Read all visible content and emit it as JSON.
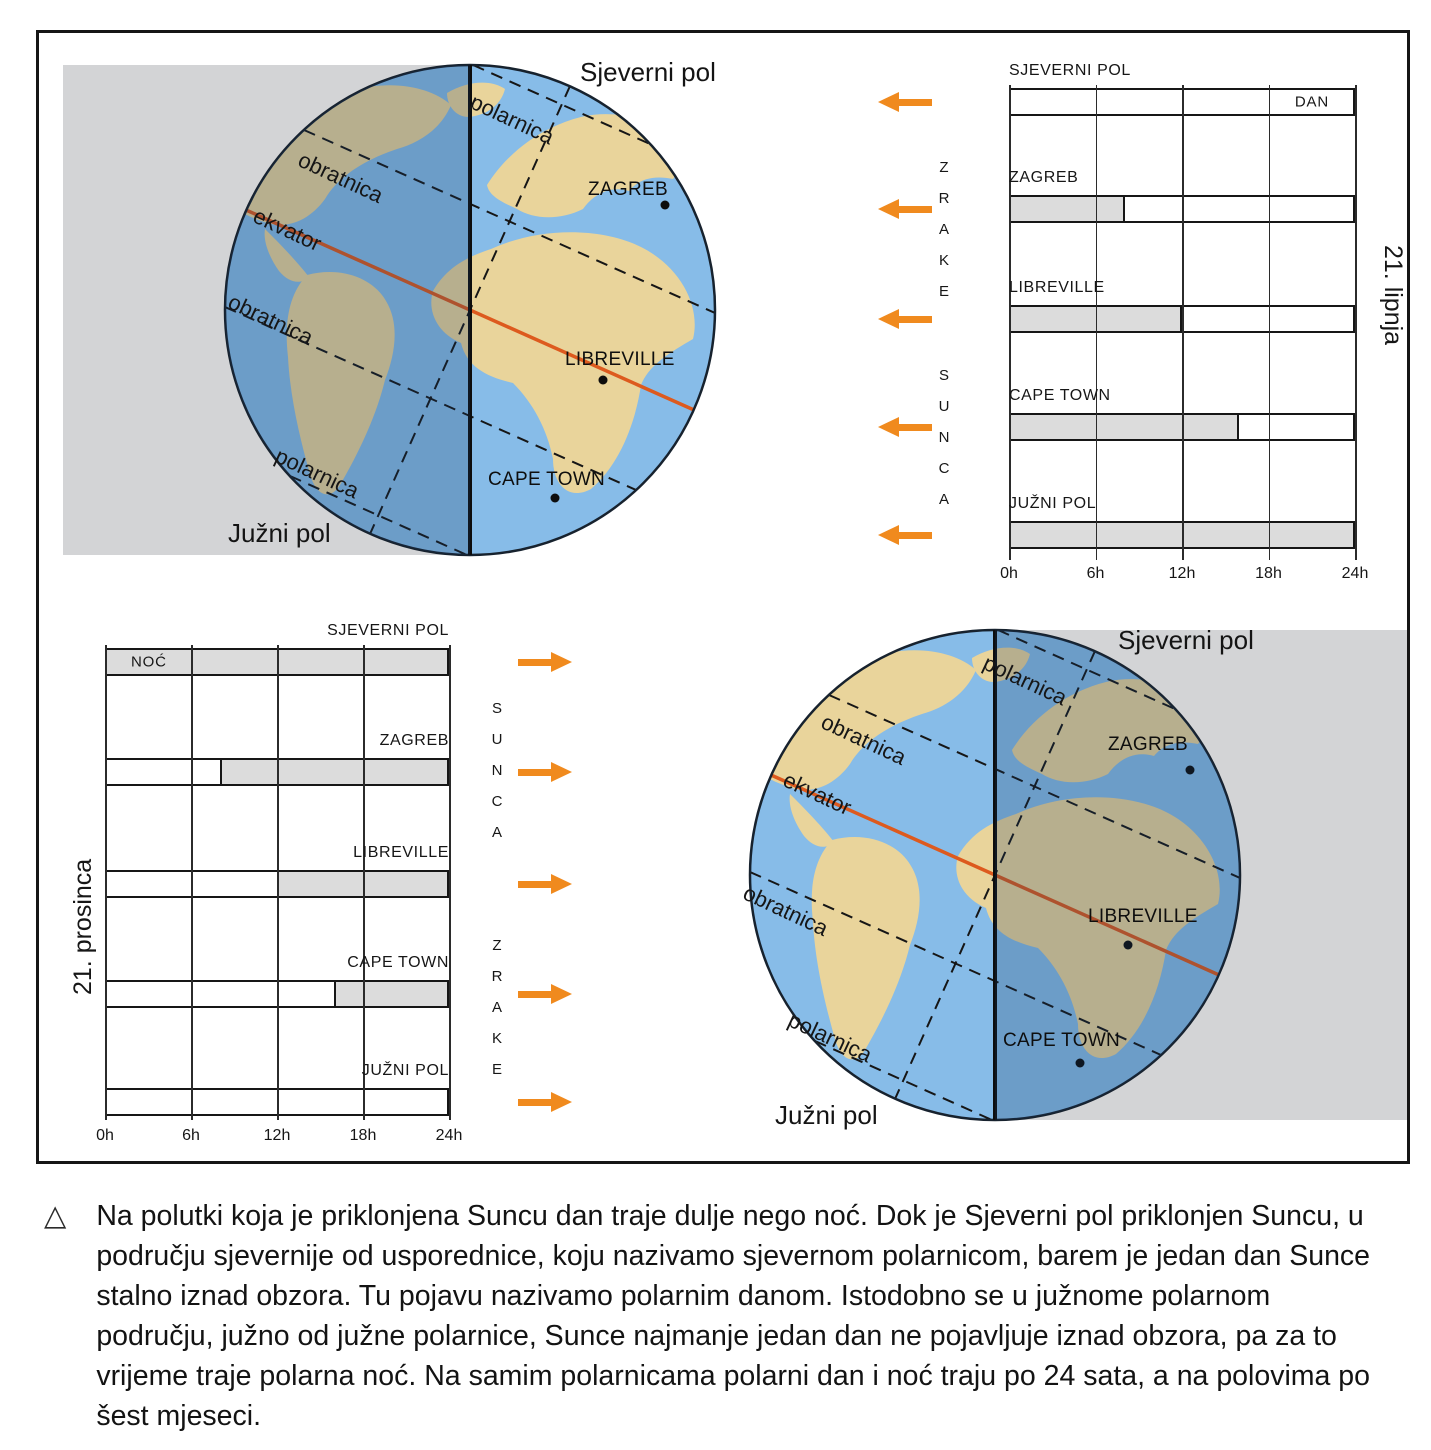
{
  "globes": {
    "june": {
      "north_pole": "Sjeverni pol",
      "south_pole": "Južni pol",
      "lines": {
        "polar_n": "polarnica",
        "tropic_n": "obratnica",
        "equator": "ekvator",
        "tropic_s": "obratnica",
        "polar_s": "polarnica"
      },
      "cities": {
        "zagreb": "ZAGREB",
        "libreville": "LIBREVILLE",
        "cape_town": "CAPE TOWN"
      }
    },
    "december": {
      "north_pole": "Sjeverni pol",
      "south_pole": "Južni pol",
      "lines": {
        "polar_n": "polarnica",
        "tropic_n": "obratnica",
        "equator": "ekvator",
        "tropic_s": "obratnica",
        "polar_s": "polarnica"
      },
      "cities": {
        "zagreb": "ZAGREB",
        "libreville": "LIBREVILLE",
        "cape_town": "CAPE TOWN"
      }
    }
  },
  "chart_data": [
    {
      "id": "june",
      "type": "bar",
      "side_label": "21. lipnja",
      "x_ticks": [
        "0h",
        "6h",
        "12h",
        "18h",
        "24h"
      ],
      "x_range_hours": [
        0,
        24
      ],
      "arrow_direction": "left",
      "label_align": "left",
      "rays_label_words": [
        "ZRAKE",
        "SUNCA"
      ],
      "legend": {
        "day": "DAN",
        "day_color": "#FFFFFF",
        "night_color": "#DCDCDC"
      },
      "rows": [
        {
          "label": "SJEVERNI POL",
          "bar_text": "DAN",
          "bar_text_side": "right",
          "segments": [
            {
              "kind": "day",
              "from_h": 0,
              "to_h": 24
            }
          ]
        },
        {
          "label": "ZAGREB",
          "segments": [
            {
              "kind": "night",
              "from_h": 0,
              "to_h": 8
            },
            {
              "kind": "day",
              "from_h": 8,
              "to_h": 24
            }
          ]
        },
        {
          "label": "LIBREVILLE",
          "segments": [
            {
              "kind": "night",
              "from_h": 0,
              "to_h": 12
            },
            {
              "kind": "day",
              "from_h": 12,
              "to_h": 24
            }
          ]
        },
        {
          "label": "CAPE TOWN",
          "segments": [
            {
              "kind": "night",
              "from_h": 0,
              "to_h": 16
            },
            {
              "kind": "day",
              "from_h": 16,
              "to_h": 24
            }
          ]
        },
        {
          "label": "JUŽNI POL",
          "segments": [
            {
              "kind": "night",
              "from_h": 0,
              "to_h": 24
            }
          ]
        }
      ]
    },
    {
      "id": "december",
      "type": "bar",
      "side_label": "21. prosinca",
      "x_ticks": [
        "0h",
        "6h",
        "12h",
        "18h",
        "24h"
      ],
      "x_range_hours": [
        0,
        24
      ],
      "arrow_direction": "right",
      "label_align": "right",
      "rays_label_words": [
        "SUNCA",
        "ZRAKE"
      ],
      "legend": {
        "night": "NOĆ",
        "day_color": "#FFFFFF",
        "night_color": "#DCDCDC"
      },
      "rows": [
        {
          "label": "SJEVERNI POL",
          "bar_text": "NOĆ",
          "bar_text_side": "left",
          "segments": [
            {
              "kind": "night",
              "from_h": 0,
              "to_h": 24
            }
          ]
        },
        {
          "label": "ZAGREB",
          "segments": [
            {
              "kind": "day",
              "from_h": 0,
              "to_h": 8
            },
            {
              "kind": "night",
              "from_h": 8,
              "to_h": 24
            }
          ]
        },
        {
          "label": "LIBREVILLE",
          "segments": [
            {
              "kind": "day",
              "from_h": 0,
              "to_h": 12
            },
            {
              "kind": "night",
              "from_h": 12,
              "to_h": 24
            }
          ]
        },
        {
          "label": "CAPE TOWN",
          "segments": [
            {
              "kind": "day",
              "from_h": 0,
              "to_h": 16
            },
            {
              "kind": "night",
              "from_h": 16,
              "to_h": 24
            }
          ]
        },
        {
          "label": "JUŽNI POL",
          "segments": [
            {
              "kind": "day",
              "from_h": 0,
              "to_h": 24
            }
          ]
        }
      ]
    }
  ],
  "caption": {
    "marker": "△",
    "text": "Na polutki koja je priklonjena Suncu dan traje dulje nego noć. Dok je Sjeverni pol priklonjen Suncu, u području sjevernije od usporednice, koju nazivamo sjevernom polarnicom, barem je jedan dan Sunce stalno iznad obzora. Tu pojavu nazivamo polarnim danom. Istodobno se u južnome polarnom području, južno od južne polarnice, Sunce najmanje jedan dan ne pojavljuje iznad obzora, pa za to vrijeme traje polarna noć. Na samim polarnicama polarni dan i noć traju po 24 sata, a na polovima po šest mjeseci."
  },
  "colors": {
    "ray_orange": "#F08A1E",
    "equator_orange": "#DD5A1E",
    "night_gray": "#DCDCDC",
    "background_gray": "#D3D4D6",
    "ocean": "#87BCE8",
    "land": "#E9D49B",
    "ink": "#161616"
  }
}
